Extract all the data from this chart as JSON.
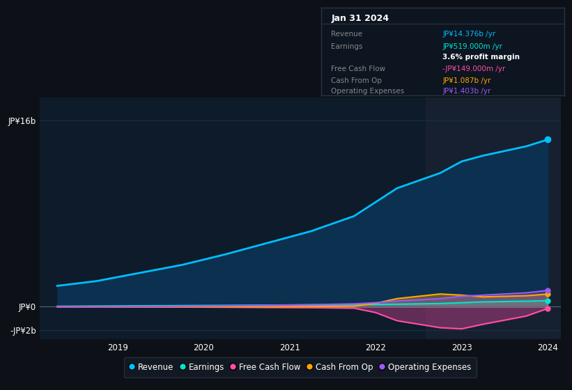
{
  "background_color": "#0d1117",
  "chart_bg_color": "#0d1b2a",
  "x_years": [
    2018.3,
    2018.75,
    2019.25,
    2019.75,
    2020.25,
    2020.75,
    2021.25,
    2021.75,
    2022.0,
    2022.25,
    2022.75,
    2023.0,
    2023.25,
    2023.75,
    2024.0
  ],
  "revenue": [
    1.8,
    2.2,
    2.9,
    3.6,
    4.5,
    5.5,
    6.5,
    7.8,
    9.0,
    10.2,
    11.5,
    12.5,
    13.0,
    13.8,
    14.376
  ],
  "earnings": [
    0.04,
    0.06,
    0.08,
    0.1,
    0.12,
    0.14,
    0.16,
    0.18,
    0.2,
    0.22,
    0.28,
    0.35,
    0.42,
    0.48,
    0.519
  ],
  "free_cash_flow": [
    0.0,
    0.0,
    -0.01,
    -0.02,
    -0.04,
    -0.06,
    -0.08,
    -0.12,
    -0.5,
    -1.2,
    -1.8,
    -1.9,
    -1.5,
    -0.8,
    -0.149
  ],
  "cash_from_op": [
    0.0,
    0.0,
    0.0,
    0.0,
    0.0,
    0.0,
    0.02,
    0.05,
    0.3,
    0.7,
    1.1,
    1.0,
    0.85,
    0.95,
    1.087
  ],
  "operating_expenses": [
    0.0,
    0.0,
    0.02,
    0.05,
    0.08,
    0.12,
    0.18,
    0.25,
    0.35,
    0.5,
    0.7,
    0.9,
    1.0,
    1.2,
    1.403
  ],
  "revenue_color": "#00bfff",
  "earnings_color": "#00e5cc",
  "fcf_color": "#ff4da6",
  "cashfromop_color": "#ffa500",
  "opex_color": "#9b59f5",
  "highlight_x_start": 2022.58,
  "highlight_x_end": 2024.15,
  "ytick_labels": [
    "-JP¥2b",
    "JP¥0",
    "JP¥16b"
  ],
  "ytick_values": [
    -2,
    0,
    16
  ],
  "xtick_labels": [
    "2019",
    "2020",
    "2021",
    "2022",
    "2023",
    "2024"
  ],
  "xtick_positions": [
    2019,
    2020,
    2021,
    2022,
    2023,
    2024
  ],
  "ylim_min": -2.8,
  "ylim_max": 18.0,
  "xlim_min": 2018.1,
  "xlim_max": 2024.15,
  "legend_items": [
    "Revenue",
    "Earnings",
    "Free Cash Flow",
    "Cash From Op",
    "Operating Expenses"
  ],
  "legend_colors": [
    "#00bfff",
    "#00e5cc",
    "#ff4da6",
    "#ffa500",
    "#9b59f5"
  ],
  "info_box": {
    "title": "Jan 31 2024",
    "rows": [
      {
        "label": "Revenue",
        "value": "JP¥14.376b /yr",
        "value_color": "#00bfff"
      },
      {
        "label": "Earnings",
        "value": "JP¥519.000m /yr",
        "value_color": "#00e5cc"
      },
      {
        "label": "",
        "value": "3.6% profit margin",
        "value_color": "#ffffff",
        "bold": true
      },
      {
        "label": "Free Cash Flow",
        "value": "-JP¥149.000m /yr",
        "value_color": "#ff4da6"
      },
      {
        "label": "Cash From Op",
        "value": "JP¥1.087b /yr",
        "value_color": "#ffa500"
      },
      {
        "label": "Operating Expenses",
        "value": "JP¥1.403b /yr",
        "value_color": "#9b59f5"
      }
    ]
  }
}
